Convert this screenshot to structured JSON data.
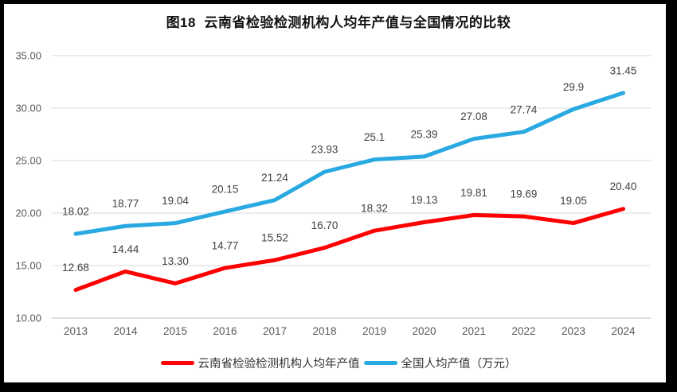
{
  "chart_data": {
    "type": "line",
    "title": "图18  云南省检验检测机构人均年产值与全国情况的比较",
    "categories": [
      "2013",
      "2014",
      "2015",
      "2016",
      "2017",
      "2018",
      "2019",
      "2020",
      "2021",
      "2022",
      "2023",
      "2024"
    ],
    "series": [
      {
        "name": "云南省检验检测机构人均年产值",
        "color": "#ff0000",
        "values": [
          12.68,
          14.44,
          13.3,
          14.77,
          15.52,
          16.7,
          18.32,
          19.13,
          19.81,
          19.69,
          19.05,
          20.4
        ],
        "labels": [
          "12.68",
          "14.44",
          "13.30",
          "14.77",
          "15.52",
          "16.70",
          "18.32",
          "19.13",
          "19.81",
          "19.69",
          "19.05",
          "20.40"
        ]
      },
      {
        "name": "全国人均产值（万元）",
        "color": "#29a9e1",
        "values": [
          18.02,
          18.77,
          19.04,
          20.15,
          21.24,
          23.93,
          25.1,
          25.39,
          27.08,
          27.74,
          29.9,
          31.45
        ],
        "labels": [
          "18.02",
          "18.77",
          "19.04",
          "20.15",
          "21.24",
          "23.93",
          "25.1",
          "25.39",
          "27.08",
          "27.74",
          "29.9",
          "31.45"
        ]
      }
    ],
    "ylim": [
      10,
      35
    ],
    "yticks": [
      {
        "v": 10,
        "label": "10.00"
      },
      {
        "v": 15,
        "label": "15.00"
      },
      {
        "v": 20,
        "label": "20.00"
      },
      {
        "v": 25,
        "label": "25.00"
      },
      {
        "v": 30,
        "label": "30.00"
      },
      {
        "v": 35,
        "label": "35.00"
      }
    ],
    "grid": true,
    "legend_position": "bottom",
    "xlabel": "",
    "ylabel": ""
  },
  "colors": {
    "grid": "#d9d9d9",
    "axis": "#c6c6c6",
    "tick_text": "#595959",
    "data_label_text": "#404040",
    "frame_border": "#000000"
  }
}
